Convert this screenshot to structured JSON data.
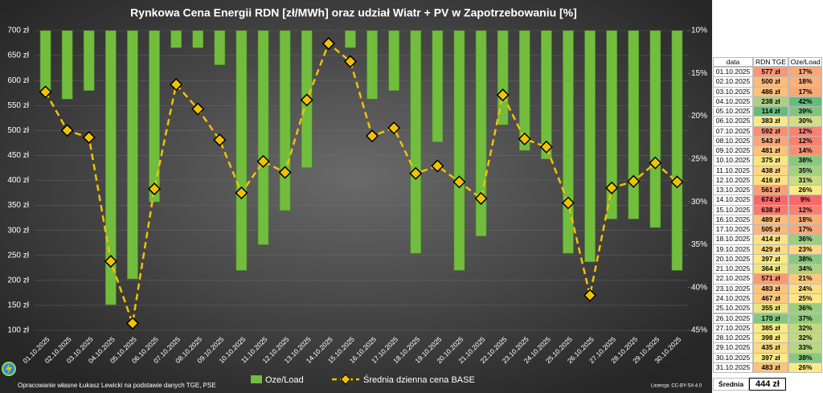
{
  "chart_data": {
    "type": "bar-line",
    "title": "Rynkowa Cena Energii RDN [zł/MWh] oraz udział Wiatr + PV w Zapotrzebowaniu [%]",
    "categories": [
      "01.10.2025",
      "02.10.2025",
      "03.10.2025",
      "04.10.2025",
      "05.10.2025",
      "06.10.2025",
      "07.10.2025",
      "08.10.2025",
      "09.10.2025",
      "10.10.2025",
      "11.10.2025",
      "12.10.2025",
      "13.10.2025",
      "14.10.2025",
      "15.10.2025",
      "16.10.2025",
      "17.10.2025",
      "18.10.2025",
      "19.10.2025",
      "20.10.2025",
      "21.10.2025",
      "22.10.2025",
      "23.10.2025",
      "24.10.2025",
      "25.10.2025",
      "26.10.2025",
      "27.10.2025",
      "28.10.2025",
      "29.10.2025",
      "30.10.2025"
    ],
    "series": [
      {
        "name": "Oze/Load",
        "type": "bar",
        "axis": "y2",
        "color": "#72bd3e",
        "values": [
          17,
          18,
          17,
          42,
          39,
          30,
          12,
          12,
          14,
          38,
          35,
          31,
          26,
          9,
          12,
          18,
          17,
          36,
          23,
          38,
          34,
          21,
          24,
          25,
          36,
          37,
          32,
          32,
          33,
          38
        ]
      },
      {
        "name": "Średnia dzienna cena BASE",
        "type": "line",
        "color": "#f2c200",
        "values": [
          577,
          500,
          486,
          238,
          114,
          383,
          592,
          543,
          481,
          375,
          438,
          416,
          561,
          674,
          638,
          489,
          505,
          414,
          429,
          397,
          364,
          571,
          483,
          467,
          355,
          170,
          385,
          398,
          435,
          397
        ]
      }
    ],
    "ylim": [
      100,
      700
    ],
    "yticks": [
      {
        "value": 100,
        "label": "100 zł"
      },
      {
        "value": 150,
        "label": "150 zł"
      },
      {
        "value": 200,
        "label": "200 zł"
      },
      {
        "value": 250,
        "label": "250 zł"
      },
      {
        "value": 300,
        "label": "300 zł"
      },
      {
        "value": 350,
        "label": "350 zł"
      },
      {
        "value": 400,
        "label": "400 zł"
      },
      {
        "value": 450,
        "label": "450 zł"
      },
      {
        "value": 500,
        "label": "500 zł"
      },
      {
        "value": 550,
        "label": "550 zł"
      },
      {
        "value": 600,
        "label": "600 zł"
      },
      {
        "value": 650,
        "label": "650 zł"
      },
      {
        "value": 700,
        "label": "700 zł"
      }
    ],
    "y2lim": [
      10,
      45
    ],
    "y2_inverted": true,
    "y2ticks": [
      {
        "value": 10,
        "label": "10%"
      },
      {
        "value": 15,
        "label": "15%"
      },
      {
        "value": 20,
        "label": "20%"
      },
      {
        "value": 25,
        "label": "25%"
      },
      {
        "value": 30,
        "label": "30%"
      },
      {
        "value": 35,
        "label": "35%"
      },
      {
        "value": 40,
        "label": "40%"
      },
      {
        "value": 45,
        "label": "45%"
      }
    ],
    "grid": true,
    "legend": "bottom",
    "credit": "Opracowanie własne Łukasz Lewicki na podstawie danych TGE, PSE",
    "license": "Licencja: CC-BY-SA 4.0"
  },
  "table": {
    "headers": [
      "data",
      "RDN TGE",
      "Oze/Load"
    ],
    "rows": [
      [
        "01.10.2025",
        "577 zł",
        "17%"
      ],
      [
        "02.10.2025",
        "500 zł",
        "18%"
      ],
      [
        "03.10.2025",
        "486 zł",
        "17%"
      ],
      [
        "04.10.2025",
        "238 zł",
        "42%"
      ],
      [
        "05.10.2025",
        "114 zł",
        "39%"
      ],
      [
        "06.10.2025",
        "383 zł",
        "30%"
      ],
      [
        "07.10.2025",
        "592 zł",
        "12%"
      ],
      [
        "08.10.2025",
        "543 zł",
        "12%"
      ],
      [
        "09.10.2025",
        "481 zł",
        "14%"
      ],
      [
        "10.10.2025",
        "375 zł",
        "38%"
      ],
      [
        "11.10.2025",
        "438 zł",
        "35%"
      ],
      [
        "12.10.2025",
        "416 zł",
        "31%"
      ],
      [
        "13.10.2025",
        "561 zł",
        "26%"
      ],
      [
        "14.10.2025",
        "674 zł",
        "9%"
      ],
      [
        "15.10.2025",
        "638 zł",
        "12%"
      ],
      [
        "16.10.2025",
        "489 zł",
        "18%"
      ],
      [
        "17.10.2025",
        "505 zł",
        "17%"
      ],
      [
        "18.10.2025",
        "414 zł",
        "36%"
      ],
      [
        "19.10.2025",
        "429 zł",
        "23%"
      ],
      [
        "20.10.2025",
        "397 zł",
        "38%"
      ],
      [
        "21.10.2025",
        "364 zł",
        "34%"
      ],
      [
        "22.10.2025",
        "571 zł",
        "21%"
      ],
      [
        "23.10.2025",
        "483 zł",
        "24%"
      ],
      [
        "24.10.2025",
        "467 zł",
        "25%"
      ],
      [
        "25.10.2025",
        "355 zł",
        "36%"
      ],
      [
        "26.10.2025",
        "170 zł",
        "37%"
      ],
      [
        "27.10.2025",
        "385 zł",
        "32%"
      ],
      [
        "28.10.2025",
        "398 zł",
        "32%"
      ],
      [
        "29.10.2025",
        "435 zł",
        "33%"
      ],
      [
        "30.10.2025",
        "397 zł",
        "38%"
      ],
      [
        "31.10.2025",
        "483 zł",
        "26%"
      ]
    ],
    "footer_label": "Średnia",
    "footer_value": "444 zł"
  }
}
